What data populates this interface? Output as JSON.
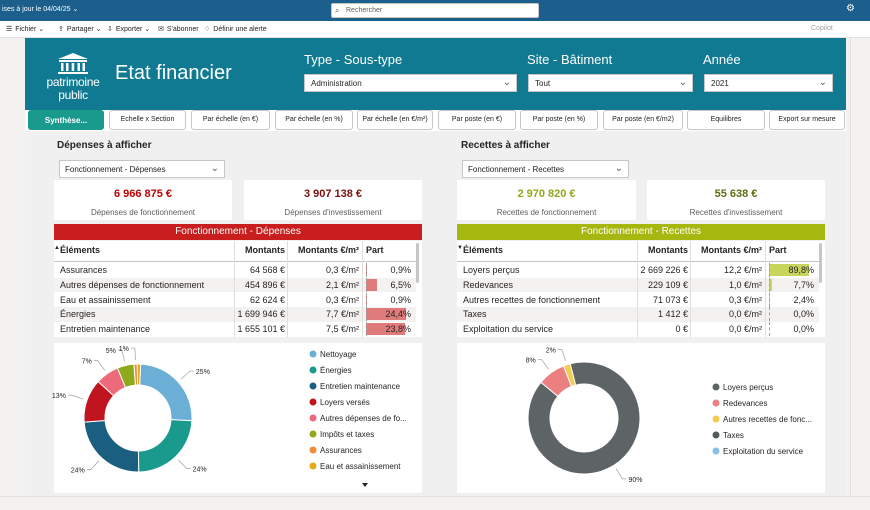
{
  "topbar": {
    "update_text": "ises à jour le 04/04/25",
    "search_placeholder": "Rechercher"
  },
  "toolbar": {
    "items": [
      "Fichier",
      "Partager",
      "Exporter",
      "S'abonner",
      "Définir une alerte"
    ],
    "copilot": "Copilot"
  },
  "header": {
    "logo_line1": "patrimoine",
    "logo_line2": "public",
    "title": "Etat financier",
    "filters": [
      {
        "label": "Type - Sous-type",
        "value": "Administration"
      },
      {
        "label": "Site - Bâtiment",
        "value": "Tout"
      },
      {
        "label": "Année",
        "value": "2021"
      }
    ]
  },
  "tabs": [
    "Synthèse...",
    "Echelle x Section",
    "Par échelle (en €)",
    "Par échelle (en %)",
    "Par échelle (en €/m²)",
    "Par poste (en €)",
    "Par poste (en %)",
    "Par poste (en €/m2)",
    "Equilibres",
    "Export sur mesure"
  ],
  "left": {
    "section_title": "Dépenses à afficher",
    "dropdown": "Fonctionnement - Dépenses",
    "cards": [
      {
        "value": "6 966 875 €",
        "label": "Dépenses de fonctionnement",
        "color": "#c00000"
      },
      {
        "value": "3 907 138 €",
        "label": "Dépenses d'investissement",
        "color": "#7a1010"
      }
    ],
    "table_title": "Fonctionnement - Dépenses",
    "table_color": "#c81e1e",
    "columns": [
      "Éléments",
      "Montants",
      "Montants €/m²",
      "Part"
    ],
    "rows": [
      {
        "name": "Assurances",
        "montant": "64 568 €",
        "m2": "0,3 €/m²",
        "part": "0,9%",
        "pct": 0.9
      },
      {
        "name": "Autres dépenses de fonctionnement",
        "montant": "454 896 €",
        "m2": "2,1 €/m²",
        "part": "6,5%",
        "pct": 6.5
      },
      {
        "name": "Eau et assainissement",
        "montant": "62 624 €",
        "m2": "0,3 €/m²",
        "part": "0,9%",
        "pct": 0.9
      },
      {
        "name": "Énergies",
        "montant": "1 699 946 €",
        "m2": "7,7 €/m²",
        "part": "24,4%",
        "pct": 24.4
      },
      {
        "name": "Entretien maintenance",
        "montant": "1 655 101 €",
        "m2": "7,5 €/m²",
        "part": "23,8%",
        "pct": 23.8
      }
    ],
    "bar_color": "#e07b7b",
    "donut": [
      {
        "name": "Nettoyage",
        "pct": 25,
        "color": "#6baed6",
        "label": "25%"
      },
      {
        "name": "Énergies",
        "pct": 24,
        "color": "#1a9a8c",
        "label": "24%"
      },
      {
        "name": "Entretien maintenance",
        "pct": 24,
        "color": "#1b5f80",
        "label": "24%"
      },
      {
        "name": "Loyers versés",
        "pct": 13,
        "color": "#c0141e",
        "label": "13%"
      },
      {
        "name": "Autres dépenses de fo...",
        "pct": 7,
        "color": "#ec6a7a",
        "label": "7%"
      },
      {
        "name": "Impôts et taxes",
        "pct": 5,
        "color": "#8ea91c",
        "label": "5%"
      },
      {
        "name": "Assurances",
        "pct": 1,
        "color": "#f28c3a",
        "label": "1%"
      },
      {
        "name": "Eau et assainissement",
        "pct": 1,
        "color": "#e6a818",
        "label": ""
      }
    ]
  },
  "right": {
    "section_title": "Recettes à afficher",
    "dropdown": "Fonctionnement - Recettes",
    "cards": [
      {
        "value": "2 970 820 €",
        "label": "Recettes de fonctionnement",
        "color": "#8ea91c"
      },
      {
        "value": "55 638 €",
        "label": "Recettes d'investissement",
        "color": "#5d6e12"
      }
    ],
    "table_title": "Fonctionnement - Recettes",
    "table_color": "#a6b80f",
    "columns": [
      "Éléments",
      "Montants",
      "Montants €/m²",
      "Part"
    ],
    "rows": [
      {
        "name": "Loyers perçus",
        "montant": "2 669 226 €",
        "m2": "12,2 €/m²",
        "part": "89,8%",
        "pct": 89.8
      },
      {
        "name": "Redevances",
        "montant": "229 109 €",
        "m2": "1,0 €/m²",
        "part": "7,7%",
        "pct": 7.7
      },
      {
        "name": "Autres recettes de fonctionnement",
        "montant": "71 073 €",
        "m2": "0,3 €/m²",
        "part": "2,4%",
        "pct": 2.4
      },
      {
        "name": "Taxes",
        "montant": "1 412 €",
        "m2": "0,0 €/m²",
        "part": "0,0%",
        "pct": 0.0
      },
      {
        "name": "Exploitation du service",
        "montant": "0 €",
        "m2": "0,0 €/m²",
        "part": "0,0%",
        "pct": 0.0
      }
    ],
    "bar_color": "#c9d45a",
    "donut": [
      {
        "name": "Loyers perçus",
        "pct": 90,
        "color": "#5e6466",
        "label": "90%"
      },
      {
        "name": "Redevances",
        "pct": 8,
        "color": "#ec8080",
        "label": "8%"
      },
      {
        "name": "Autres recettes de fonc...",
        "pct": 2,
        "color": "#f4cc50",
        "label": "2%"
      },
      {
        "name": "Taxes",
        "pct": 0,
        "color": "#555b5d",
        "label": ""
      },
      {
        "name": "Exploitation du service",
        "pct": 0,
        "color": "#89c0e8",
        "label": ""
      }
    ]
  }
}
